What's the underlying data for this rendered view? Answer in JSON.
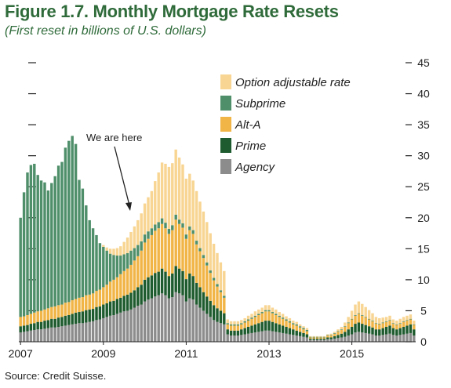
{
  "title": "Figure 1.7. Monthly Mortgage Rate Resets",
  "subtitle": "(First reset in billions of U.S. dollars)",
  "source": "Source: Credit Suisse.",
  "annotation": "We are here",
  "colors": {
    "option_arm": "#f8d592",
    "subprime": "#4f8f6a",
    "alt_a": "#f1b446",
    "prime": "#1e5b2e",
    "agency": "#8c8c8c",
    "title": "#2f6b3a"
  },
  "chart_data": {
    "type": "bar",
    "stacked": true,
    "x_start": "2007-01",
    "frequency": "monthly",
    "x_tick_labels": [
      "2007",
      "2009",
      "2011",
      "2013",
      "2015"
    ],
    "x_tick_years": [
      2007,
      2009,
      2011,
      2013,
      2015
    ],
    "ylim": [
      0,
      45
    ],
    "y_ticks": [
      0,
      5,
      10,
      15,
      20,
      25,
      30,
      35,
      40,
      45
    ],
    "annotation_month": "2009-08",
    "legend": [
      "Option adjustable rate",
      "Subprime",
      "Alt-A",
      "Prime",
      "Agency"
    ],
    "legend_position": "top-right",
    "series": [
      {
        "name": "Agency",
        "color_key": "agency",
        "values": [
          1.5,
          1.6,
          1.7,
          1.8,
          1.9,
          2.0,
          2.0,
          2.1,
          2.2,
          2.3,
          2.3,
          2.4,
          2.5,
          2.6,
          2.7,
          2.8,
          2.9,
          3.0,
          3.0,
          3.1,
          3.2,
          3.3,
          3.5,
          3.6,
          3.8,
          4.0,
          4.2,
          4.3,
          4.5,
          4.7,
          4.9,
          5.0,
          5.2,
          5.5,
          5.8,
          6.0,
          6.5,
          6.8,
          7.0,
          7.3,
          7.5,
          7.8,
          7.5,
          7.0,
          7.2,
          8.0,
          7.8,
          7.5,
          6.5,
          7.0,
          6.8,
          6.0,
          5.5,
          5.0,
          4.5,
          4.0,
          3.5,
          3.2,
          3.0,
          2.8,
          1.2,
          1.0,
          1.0,
          1.0,
          1.1,
          1.2,
          1.3,
          1.4,
          1.5,
          1.6,
          1.7,
          1.8,
          1.8,
          1.7,
          1.6,
          1.5,
          1.4,
          1.3,
          1.2,
          1.1,
          1.0,
          0.9,
          0.8,
          0.7,
          0.3,
          0.3,
          0.3,
          0.3,
          0.3,
          0.4,
          0.4,
          0.5,
          0.6,
          0.7,
          0.8,
          1.0,
          1.2,
          1.5,
          1.6,
          1.5,
          1.4,
          1.3,
          1.2,
          1.0,
          1.0,
          1.1,
          1.2,
          1.3,
          1.1,
          1.0,
          1.1,
          1.2,
          1.3,
          1.4,
          1.0
        ]
      },
      {
        "name": "Prime",
        "color_key": "prime",
        "values": [
          1.0,
          1.0,
          1.0,
          1.1,
          1.1,
          1.2,
          1.2,
          1.3,
          1.3,
          1.4,
          1.4,
          1.5,
          1.5,
          1.6,
          1.6,
          1.7,
          1.8,
          1.8,
          1.9,
          2.0,
          2.0,
          2.0,
          2.1,
          2.1,
          2.2,
          2.2,
          2.3,
          2.3,
          2.4,
          2.4,
          2.5,
          2.6,
          2.7,
          2.8,
          3.0,
          3.2,
          3.5,
          3.6,
          3.7,
          3.8,
          3.8,
          4.0,
          3.8,
          3.6,
          3.8,
          4.2,
          4.0,
          3.9,
          3.6,
          4.0,
          3.8,
          3.5,
          3.3,
          3.0,
          2.8,
          2.6,
          2.4,
          2.2,
          2.0,
          1.8,
          0.8,
          0.8,
          0.8,
          0.8,
          0.9,
          1.0,
          1.1,
          1.2,
          1.3,
          1.4,
          1.5,
          1.6,
          1.6,
          1.5,
          1.4,
          1.3,
          1.2,
          1.1,
          1.0,
          0.9,
          0.8,
          0.7,
          0.6,
          0.5,
          0.2,
          0.2,
          0.2,
          0.2,
          0.2,
          0.3,
          0.3,
          0.4,
          0.5,
          0.6,
          0.8,
          1.0,
          1.2,
          1.4,
          1.5,
          1.4,
          1.3,
          1.2,
          1.1,
          1.0,
          1.0,
          1.1,
          1.2,
          1.3,
          1.1,
          1.0,
          1.1,
          1.2,
          1.3,
          1.4,
          1.0
        ]
      },
      {
        "name": "Alt-A",
        "color_key": "alt_a",
        "values": [
          1.5,
          1.5,
          1.6,
          1.6,
          1.7,
          1.7,
          1.8,
          1.8,
          1.9,
          1.9,
          2.0,
          2.0,
          2.0,
          2.1,
          2.1,
          2.2,
          2.2,
          2.3,
          2.3,
          2.4,
          2.4,
          2.5,
          2.6,
          2.7,
          2.8,
          3.0,
          3.2,
          3.4,
          3.5,
          3.8,
          4.0,
          4.2,
          4.5,
          4.8,
          5.0,
          5.5,
          6.0,
          6.2,
          6.5,
          6.8,
          7.0,
          7.2,
          7.0,
          6.8,
          7.0,
          7.5,
          7.2,
          7.0,
          6.5,
          7.0,
          6.8,
          6.2,
          5.8,
          5.5,
          5.0,
          4.5,
          4.0,
          3.5,
          3.0,
          2.5,
          0.8,
          0.8,
          0.8,
          0.8,
          0.8,
          0.9,
          1.0,
          1.1,
          1.2,
          1.3,
          1.4,
          1.5,
          1.5,
          1.4,
          1.3,
          1.2,
          1.1,
          1.0,
          0.9,
          0.8,
          0.8,
          0.7,
          0.6,
          0.5,
          0.2,
          0.2,
          0.2,
          0.2,
          0.2,
          0.3,
          0.3,
          0.4,
          0.5,
          0.6,
          0.8,
          1.0,
          1.2,
          1.3,
          1.4,
          1.3,
          1.2,
          1.1,
          1.0,
          0.9,
          0.8,
          0.8,
          0.8,
          0.8,
          0.7,
          0.7,
          0.7,
          0.8,
          0.8,
          0.8,
          0.7
        ]
      },
      {
        "name": "Subprime",
        "color_key": "subprime",
        "values": [
          16.0,
          20.0,
          23.0,
          24.0,
          24.0,
          22.0,
          21.0,
          20.5,
          19.0,
          20.0,
          21.0,
          22.5,
          23.0,
          25.0,
          26.0,
          26.5,
          25.0,
          19.0,
          17.5,
          14.5,
          12.0,
          10.5,
          9.0,
          7.5,
          6.5,
          5.5,
          4.5,
          4.0,
          3.5,
          3.0,
          2.7,
          2.5,
          2.3,
          2.0,
          1.8,
          1.5,
          1.3,
          1.2,
          1.1,
          1.0,
          1.0,
          0.9,
          0.9,
          0.8,
          0.8,
          0.8,
          0.7,
          0.7,
          0.7,
          0.6,
          0.6,
          0.6,
          0.5,
          0.5,
          0.5,
          0.4,
          0.4,
          0.4,
          0.3,
          0.3,
          0.2,
          0.2,
          0.2,
          0.2,
          0.2,
          0.2,
          0.2,
          0.2,
          0.2,
          0.2,
          0.2,
          0.2,
          0.2,
          0.2,
          0.2,
          0.2,
          0.2,
          0.2,
          0.2,
          0.2,
          0.2,
          0.2,
          0.2,
          0.2,
          0.1,
          0.1,
          0.1,
          0.1,
          0.1,
          0.1,
          0.1,
          0.1,
          0.1,
          0.1,
          0.1,
          0.1,
          0.1,
          0.1,
          0.1,
          0.1,
          0.1,
          0.1,
          0.1,
          0.1,
          0.1,
          0.1,
          0.1,
          0.1,
          0.1,
          0.1,
          0.1,
          0.1,
          0.1,
          0.1,
          0.1
        ]
      },
      {
        "name": "Option adjustable rate",
        "color_key": "option_arm",
        "values": [
          0.0,
          0.0,
          0.0,
          0.0,
          0.0,
          0.0,
          0.0,
          0.0,
          0.0,
          0.0,
          0.0,
          0.0,
          0.0,
          0.0,
          0.0,
          0.0,
          0.0,
          0.0,
          0.0,
          0.0,
          0.0,
          0.0,
          0.0,
          0.0,
          0.3,
          0.5,
          0.8,
          1.0,
          1.2,
          1.5,
          2.0,
          2.5,
          3.0,
          3.5,
          4.0,
          4.5,
          5.0,
          5.5,
          6.0,
          7.0,
          8.0,
          9.0,
          9.5,
          10.0,
          10.0,
          10.5,
          10.0,
          9.5,
          9.0,
          8.5,
          8.0,
          8.0,
          7.5,
          7.0,
          6.5,
          6.0,
          5.5,
          5.0,
          4.5,
          4.0,
          0.6,
          0.5,
          0.5,
          0.5,
          0.5,
          0.5,
          0.6,
          0.6,
          0.7,
          0.7,
          0.7,
          0.8,
          0.8,
          0.7,
          0.7,
          0.6,
          0.6,
          0.5,
          0.5,
          0.4,
          0.4,
          0.3,
          0.3,
          0.3,
          0.1,
          0.1,
          0.1,
          0.1,
          0.1,
          0.1,
          0.2,
          0.2,
          0.3,
          0.4,
          0.6,
          0.9,
          1.3,
          1.7,
          1.9,
          1.8,
          1.6,
          1.4,
          1.2,
          1.0,
          0.9,
          0.8,
          0.7,
          0.7,
          0.6,
          0.6,
          0.7,
          0.7,
          0.7,
          0.7,
          0.6
        ]
      }
    ]
  }
}
